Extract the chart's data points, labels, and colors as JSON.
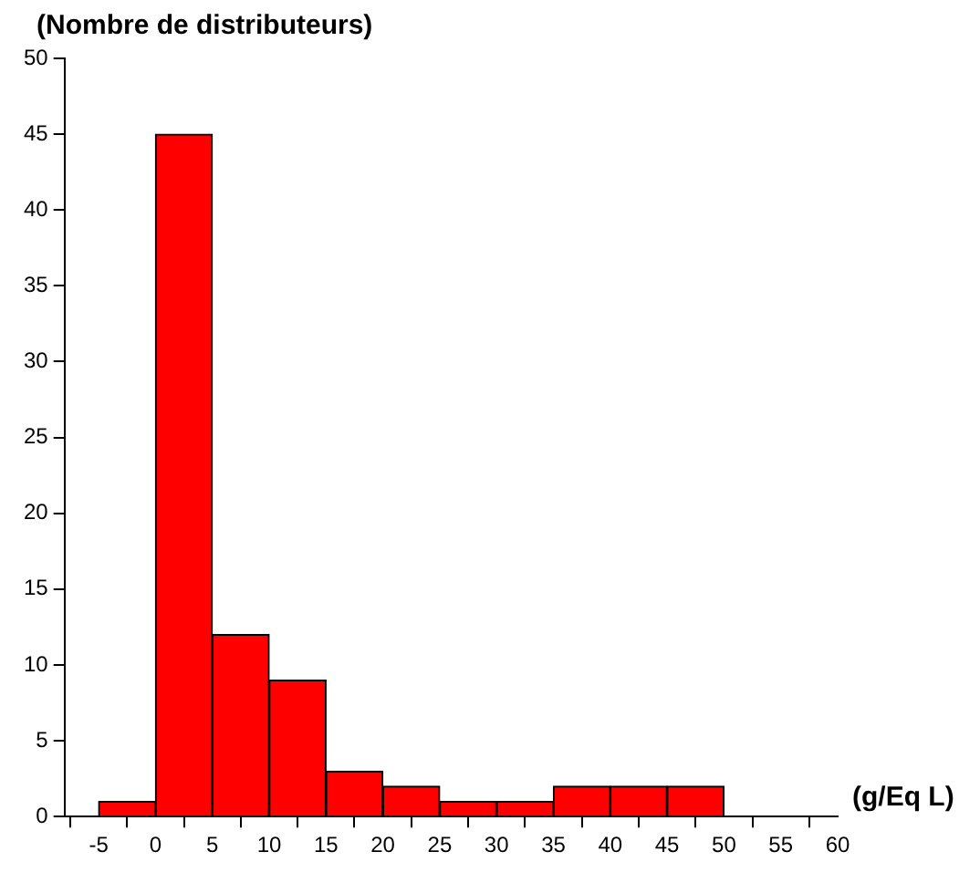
{
  "chart_data": {
    "type": "histogram",
    "ylabel": "(Nombre de distributeurs)",
    "xlabel": "(g/Eq L)",
    "bins": [
      -5,
      0,
      5,
      10,
      15,
      20,
      25,
      30,
      35,
      40,
      45,
      50
    ],
    "values": [
      1,
      45,
      12,
      9,
      3,
      2,
      1,
      1,
      2,
      2,
      2
    ],
    "color": "#ff0000",
    "xlim": [
      -8,
      60
    ],
    "xticks": [
      -5,
      0,
      5,
      10,
      15,
      20,
      25,
      30,
      35,
      40,
      45,
      50,
      55,
      60
    ],
    "ylim": [
      0,
      50
    ],
    "yticks": [
      0,
      5,
      10,
      15,
      20,
      25,
      30,
      35,
      40,
      45,
      50
    ],
    "grid": false,
    "legend": false
  }
}
